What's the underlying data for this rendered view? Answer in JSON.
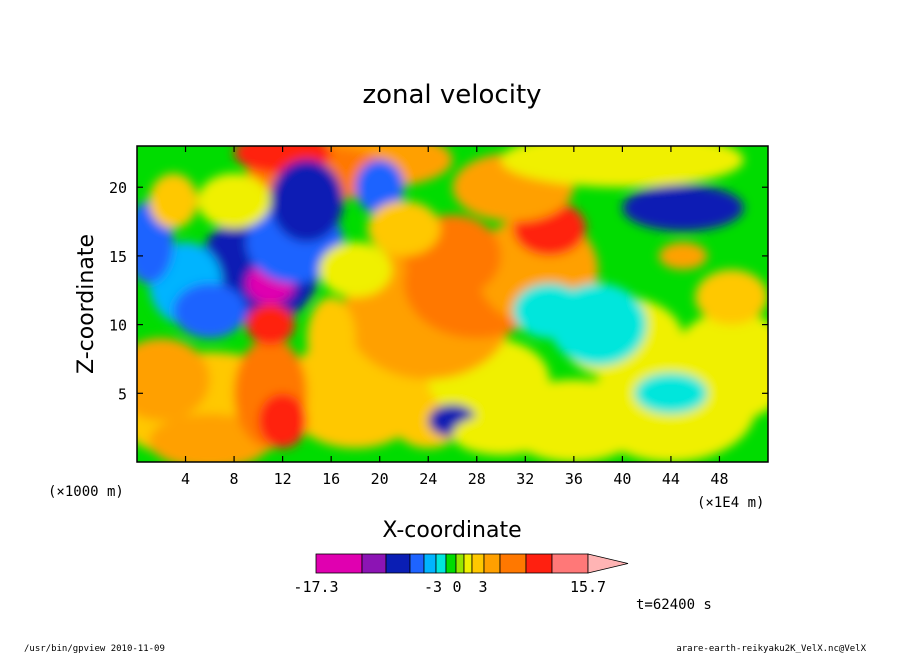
{
  "chart_data": {
    "type": "heatmap",
    "title": "zonal velocity",
    "xlabel": "X-coordinate",
    "ylabel": "Z-coordinate",
    "x_unit_label": "(×1E4 m)",
    "y_unit_label": "(×1000 m)",
    "xlim": [
      0,
      52
    ],
    "ylim": [
      0,
      23
    ],
    "x_ticks": [
      "4",
      "8",
      "12",
      "16",
      "20",
      "24",
      "28",
      "32",
      "36",
      "40",
      "44",
      "48"
    ],
    "x_tick_values": [
      4,
      8,
      12,
      16,
      20,
      24,
      28,
      32,
      36,
      40,
      44,
      48
    ],
    "y_ticks": [
      "5",
      "10",
      "15",
      "20"
    ],
    "y_tick_values": [
      5,
      10,
      15,
      20
    ],
    "colorbar": {
      "labels": [
        "-17.3",
        "-3",
        "0",
        "3",
        "15.7"
      ],
      "label_values": [
        -17.3,
        -3,
        0,
        3,
        15.7
      ],
      "colors": [
        "#e000b0",
        "#8c14b4",
        "#0a1eb4",
        "#1e64ff",
        "#00b4ff",
        "#00e6dc",
        "#00dc00",
        "#96e600",
        "#f0f000",
        "#ffc800",
        "#ffa000",
        "#ff7800",
        "#ff2010",
        "#ff7878",
        "#ffb4b4"
      ]
    },
    "time_label": "t=62400 s"
  },
  "footer": {
    "left": "/usr/bin/gpview   2010-11-09",
    "right": "arare-earth-reikyaku2K_VelX.nc@VelX"
  }
}
